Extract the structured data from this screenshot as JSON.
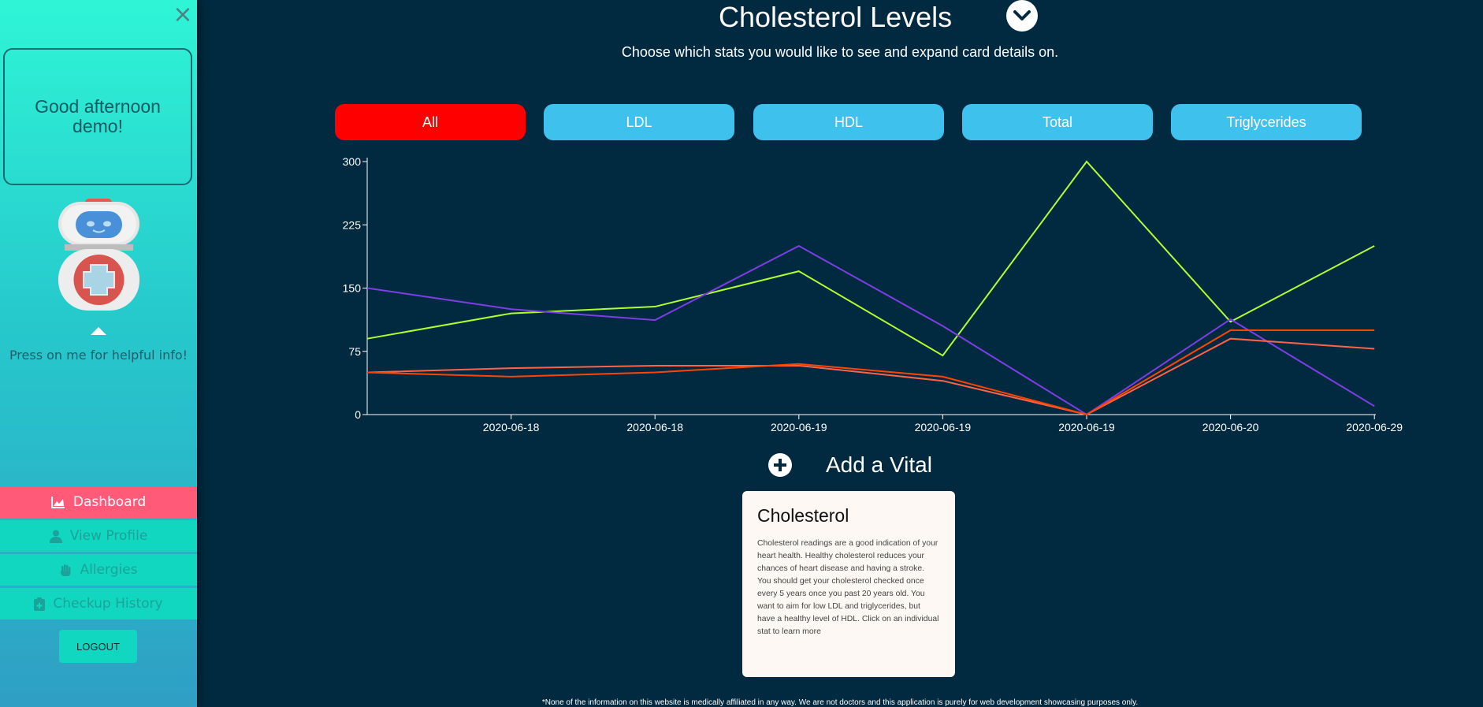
{
  "sidebar": {
    "close_label": "×",
    "greeting": "Good afternoon demo!",
    "helper_text": "Press on me for helpful info!",
    "nav": [
      {
        "label": "Dashboard",
        "icon": "chart-area-icon"
      },
      {
        "label": "View Profile",
        "icon": "user-icon"
      },
      {
        "label": "Allergies",
        "icon": "hand-icon"
      },
      {
        "label": "Checkup History",
        "icon": "clipboard-icon"
      }
    ],
    "logout_label": "LOGOUT"
  },
  "header": {
    "title": "Cholesterol Levels",
    "subtitle": "Choose which stats you would like to see and expand card details on."
  },
  "tabs": [
    {
      "label": "All",
      "active": true
    },
    {
      "label": "LDL",
      "active": false
    },
    {
      "label": "HDL",
      "active": false
    },
    {
      "label": "Total",
      "active": false
    },
    {
      "label": "Triglycerides",
      "active": false
    }
  ],
  "colors": {
    "background": "#012a40",
    "active_tab": "#ff0000",
    "tab": "#3fc1ee",
    "nav_active": "#ff5a78",
    "nav": "#12d7c0"
  },
  "chart_data": {
    "type": "line",
    "ylim": [
      0,
      300
    ],
    "yticks": [
      0,
      75,
      150,
      225,
      300
    ],
    "x_labels": [
      "",
      "2020-06-18",
      "2020-06-18",
      "2020-06-19",
      "2020-06-19",
      "2020-06-19",
      "2020-06-20",
      "2020-06-29"
    ],
    "series": [
      {
        "color": "#adff2f",
        "values": [
          90,
          120,
          128,
          170,
          70,
          300,
          110,
          200
        ]
      },
      {
        "color": "#7b3fe4",
        "values": [
          150,
          125,
          112,
          200,
          105,
          0,
          113,
          10
        ]
      },
      {
        "color": "#ff6347",
        "values": [
          50,
          55,
          58,
          58,
          40,
          0,
          90,
          78
        ]
      },
      {
        "color": "#ff4500",
        "values": [
          50,
          45,
          50,
          60,
          45,
          0,
          100,
          100
        ]
      }
    ],
    "grid": false,
    "legend": "none"
  },
  "add_vital": {
    "label": "Add a Vital"
  },
  "info_card": {
    "title": "Cholesterol",
    "body": "Cholesterol readings are a good indication of your heart health. Healthy cholesterol reduces your chances of heart disease and having a stroke. You should get your cholesterol checked once every 5 years once you past 20 years old. You want to aim for low LDL and triglycerides, but have a healthy level of HDL. Click on an individual stat to learn more"
  },
  "footer": {
    "disclaimer": "*None of the information on this website is medically affiliated in any way. We are not doctors and this application is purely for web development showcasing purposes only."
  }
}
